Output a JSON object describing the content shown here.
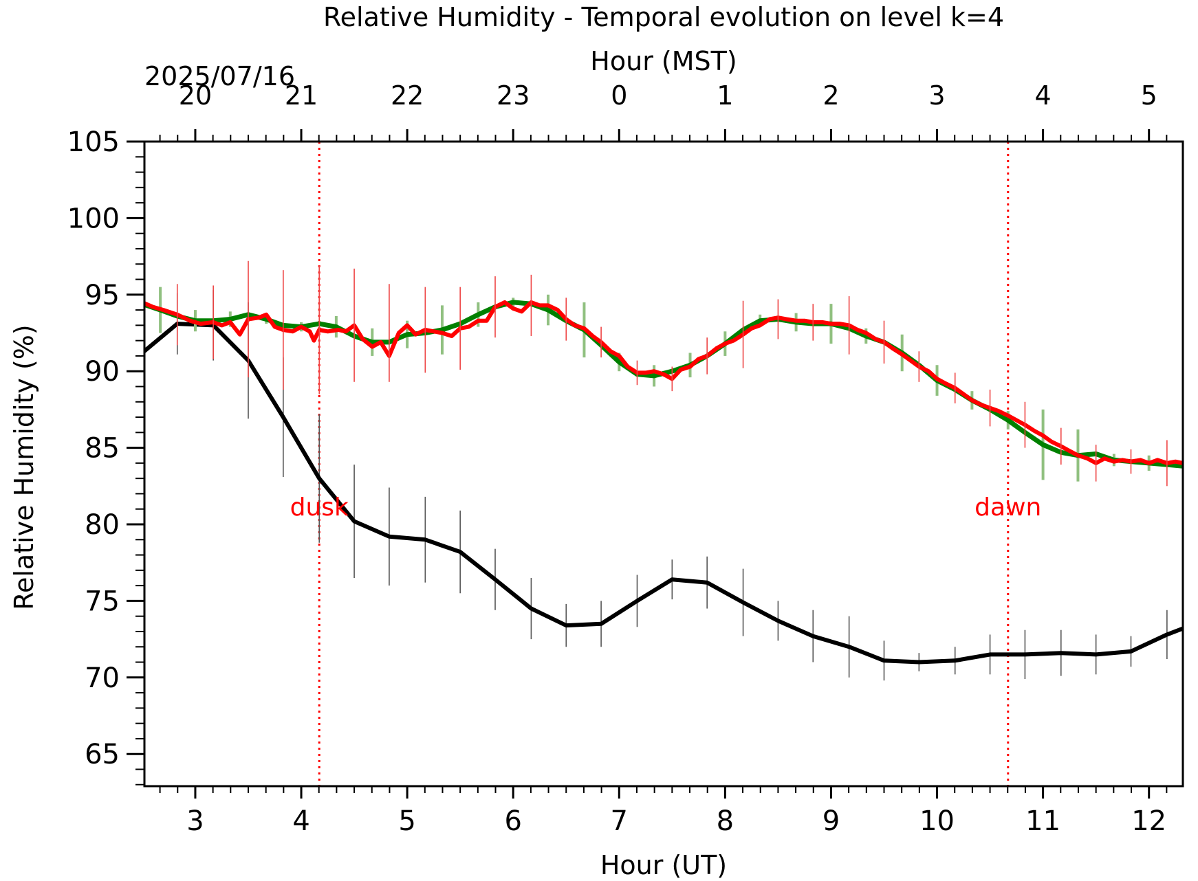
{
  "chart_data": {
    "type": "line",
    "title": "Relative Humidity - Temporal evolution on level k=4",
    "xlabel": "Hour (UT)",
    "ylabel": "Relative Humidity (%)",
    "top_axis_label": "Hour (MST)",
    "top_axis_date": "2025/07/16",
    "xlim": [
      2.52,
      12.32
    ],
    "ylim": [
      62.9,
      105
    ],
    "grid": false,
    "x_ticks": [
      3,
      4,
      5,
      6,
      7,
      8,
      9,
      10,
      11,
      12
    ],
    "x_tick_labels": [
      "3",
      "4",
      "5",
      "6",
      "7",
      "8",
      "9",
      "10",
      "11",
      "12"
    ],
    "y_ticks": [
      65,
      70,
      75,
      80,
      85,
      90,
      95,
      100,
      105
    ],
    "y_tick_labels": [
      "65",
      "70",
      "75",
      "80",
      "85",
      "90",
      "95",
      "100",
      "105"
    ],
    "top_ticks_ut": [
      3,
      4,
      5,
      6,
      7,
      8,
      9,
      10,
      11,
      12
    ],
    "top_tick_labels": [
      "20",
      "21",
      "22",
      "23",
      "0",
      "1",
      "2",
      "3",
      "4",
      "5"
    ],
    "annotations": [
      {
        "label": "dusk",
        "x": 4.17,
        "color": "#ff0000"
      },
      {
        "label": "dawn",
        "x": 10.67,
        "color": "#ff0000"
      }
    ],
    "series": [
      {
        "color": "#000000",
        "error_color": "#555555",
        "x": [
          2.5,
          2.83,
          3.17,
          3.5,
          3.83,
          4.17,
          4.5,
          4.83,
          5.17,
          5.5,
          5.83,
          6.17,
          6.5,
          6.83,
          7.17,
          7.5,
          7.83,
          8.17,
          8.5,
          8.83,
          9.17,
          9.5,
          9.83,
          10.17,
          10.5,
          10.83,
          11.17,
          11.5,
          11.83,
          12.17,
          12.32
        ],
        "y": [
          91.2,
          93.1,
          93.0,
          90.7,
          87.0,
          83.0,
          80.2,
          79.2,
          79.0,
          78.2,
          76.4,
          74.5,
          73.4,
          73.5,
          75.0,
          76.4,
          76.2,
          74.9,
          73.7,
          72.7,
          72.0,
          71.1,
          71.0,
          71.1,
          71.5,
          71.5,
          71.6,
          71.5,
          71.7,
          72.8,
          73.2
        ],
        "err": [
          0,
          2.0,
          2.3,
          3.8,
          3.9,
          4.2,
          3.7,
          3.2,
          2.8,
          2.7,
          2.0,
          2.0,
          1.4,
          1.5,
          1.7,
          1.3,
          1.7,
          2.2,
          1.3,
          1.7,
          2.0,
          1.3,
          0.6,
          0.9,
          1.3,
          1.6,
          1.5,
          1.3,
          1.0,
          1.6,
          0
        ]
      },
      {
        "color": "#008000",
        "error_color": "#90c080",
        "x": [
          2.5,
          2.67,
          2.83,
          3.0,
          3.17,
          3.33,
          3.5,
          3.67,
          3.83,
          4.0,
          4.17,
          4.33,
          4.5,
          4.67,
          4.83,
          5.0,
          5.17,
          5.33,
          5.5,
          5.67,
          5.83,
          6.0,
          6.17,
          6.33,
          6.5,
          6.67,
          6.83,
          7.0,
          7.17,
          7.33,
          7.5,
          7.67,
          7.83,
          8.0,
          8.17,
          8.33,
          8.5,
          8.67,
          8.83,
          9.0,
          9.17,
          9.33,
          9.5,
          9.67,
          9.83,
          10.0,
          10.17,
          10.33,
          10.5,
          10.67,
          10.83,
          11.0,
          11.17,
          11.33,
          11.5,
          11.67,
          11.83,
          12.0,
          12.17,
          12.32
        ],
        "y": [
          94.4,
          94.0,
          93.6,
          93.3,
          93.3,
          93.4,
          93.7,
          93.4,
          93.0,
          92.9,
          93.1,
          92.9,
          92.3,
          91.9,
          91.9,
          92.4,
          92.5,
          92.7,
          93.1,
          93.7,
          94.2,
          94.5,
          94.4,
          94.0,
          93.3,
          92.7,
          91.7,
          90.6,
          89.8,
          89.7,
          90.0,
          90.4,
          91.0,
          91.8,
          92.7,
          93.3,
          93.4,
          93.2,
          93.1,
          93.1,
          92.8,
          92.3,
          91.9,
          91.2,
          90.4,
          89.4,
          88.8,
          88.1,
          87.5,
          86.8,
          86.0,
          85.2,
          84.7,
          84.5,
          84.6,
          84.2,
          84.1,
          84.0,
          83.9,
          83.8
        ],
        "err": [
          0,
          1.5,
          0,
          0.7,
          0,
          0.5,
          0,
          0.3,
          0,
          0.3,
          0,
          0.7,
          0,
          0.9,
          0,
          0.9,
          0,
          1.6,
          0,
          0.8,
          0,
          0.3,
          0,
          1.0,
          0,
          1.8,
          0,
          0.6,
          0,
          0.7,
          0,
          0.8,
          0,
          0.8,
          0,
          0.4,
          0,
          0.6,
          0,
          1.3,
          0,
          0.5,
          0,
          1.2,
          0,
          1.0,
          0,
          0.6,
          0,
          0.6,
          0,
          2.3,
          0,
          1.7,
          0,
          0.4,
          0,
          0.5,
          0,
          0
        ]
      },
      {
        "color": "#ff0000",
        "error_color": "#ee4444",
        "x": [
          2.5,
          2.6,
          2.7,
          2.83,
          2.95,
          3.05,
          3.17,
          3.25,
          3.33,
          3.42,
          3.5,
          3.6,
          3.67,
          3.75,
          3.83,
          3.92,
          4.0,
          4.08,
          4.12,
          4.17,
          4.25,
          4.35,
          4.42,
          4.5,
          4.58,
          4.67,
          4.75,
          4.83,
          4.92,
          5.0,
          5.08,
          5.17,
          5.25,
          5.33,
          5.42,
          5.5,
          5.58,
          5.67,
          5.75,
          5.83,
          5.92,
          6.0,
          6.08,
          6.17,
          6.25,
          6.33,
          6.42,
          6.5,
          6.58,
          6.67,
          6.75,
          6.83,
          6.92,
          7.0,
          7.08,
          7.17,
          7.25,
          7.33,
          7.42,
          7.5,
          7.58,
          7.67,
          7.75,
          7.83,
          7.92,
          8.0,
          8.08,
          8.17,
          8.25,
          8.33,
          8.42,
          8.5,
          8.58,
          8.67,
          8.75,
          8.83,
          8.92,
          9.0,
          9.08,
          9.17,
          9.25,
          9.33,
          9.42,
          9.5,
          9.58,
          9.67,
          9.75,
          9.83,
          9.92,
          10.0,
          10.08,
          10.17,
          10.25,
          10.33,
          10.42,
          10.5,
          10.58,
          10.67,
          10.75,
          10.83,
          10.92,
          11.0,
          11.08,
          11.17,
          11.25,
          11.33,
          11.42,
          11.5,
          11.58,
          11.67,
          11.75,
          11.83,
          11.92,
          12.0,
          12.08,
          12.17,
          12.25,
          12.32
        ],
        "y": [
          94.5,
          94.2,
          94.0,
          93.7,
          93.3,
          93.1,
          93.2,
          93.0,
          93.2,
          92.4,
          93.4,
          93.5,
          93.7,
          92.9,
          92.7,
          92.6,
          92.9,
          92.6,
          92.0,
          92.7,
          92.6,
          92.7,
          92.6,
          93.0,
          92.1,
          91.6,
          91.9,
          91.0,
          92.5,
          93.0,
          92.4,
          92.7,
          92.6,
          92.5,
          92.3,
          92.8,
          92.9,
          93.3,
          93.3,
          94.2,
          94.5,
          94.1,
          93.9,
          94.5,
          94.3,
          94.3,
          94.0,
          93.4,
          93.0,
          92.8,
          92.3,
          91.9,
          91.3,
          91.0,
          90.3,
          89.9,
          89.9,
          90.0,
          89.8,
          89.5,
          90.1,
          90.3,
          90.8,
          91.0,
          91.5,
          91.8,
          92.0,
          92.4,
          92.8,
          93.0,
          93.4,
          93.5,
          93.4,
          93.3,
          93.3,
          93.2,
          93.2,
          93.1,
          93.1,
          93.0,
          92.7,
          92.5,
          92.1,
          91.9,
          91.5,
          91.1,
          90.7,
          90.3,
          90.0,
          89.5,
          89.2,
          88.9,
          88.5,
          88.1,
          87.8,
          87.6,
          87.4,
          87.1,
          86.8,
          86.5,
          86.1,
          85.8,
          85.4,
          85.1,
          84.8,
          84.5,
          84.3,
          84.0,
          84.3,
          84.1,
          84.2,
          84.1,
          84.2,
          84.0,
          84.2,
          84.0,
          84.1,
          84.0
        ]
      },
      {
        "color": "#ff0000",
        "error_color": "#ee4444",
        "x": [
          2.83,
          3.17,
          3.5,
          3.83,
          4.17,
          4.5,
          4.83,
          5.17,
          5.5,
          5.83,
          6.17,
          6.5,
          6.83,
          7.17,
          7.5,
          7.83,
          8.17,
          8.5,
          8.83,
          9.17,
          9.5,
          9.83,
          10.17,
          10.5,
          10.83,
          11.17,
          11.5,
          11.83,
          12.17
        ],
        "y": [
          93.7,
          93.2,
          93.4,
          92.7,
          92.7,
          93.0,
          92.5,
          92.7,
          92.8,
          94.2,
          94.3,
          93.4,
          91.9,
          89.9,
          89.5,
          91.0,
          92.4,
          93.4,
          93.2,
          93.0,
          91.9,
          90.3,
          88.9,
          87.6,
          86.5,
          85.1,
          84.0,
          84.1,
          84.0
        ],
        "err": [
          2.0,
          2.4,
          3.8,
          3.9,
          4.2,
          3.7,
          3.2,
          2.8,
          2.7,
          2.0,
          2.0,
          1.4,
          1.0,
          0.8,
          0.8,
          1.2,
          2.2,
          1.3,
          1.2,
          1.9,
          1.4,
          1.0,
          1.0,
          1.2,
          1.5,
          1.2,
          1.2,
          0.8,
          1.5
        ]
      }
    ]
  }
}
